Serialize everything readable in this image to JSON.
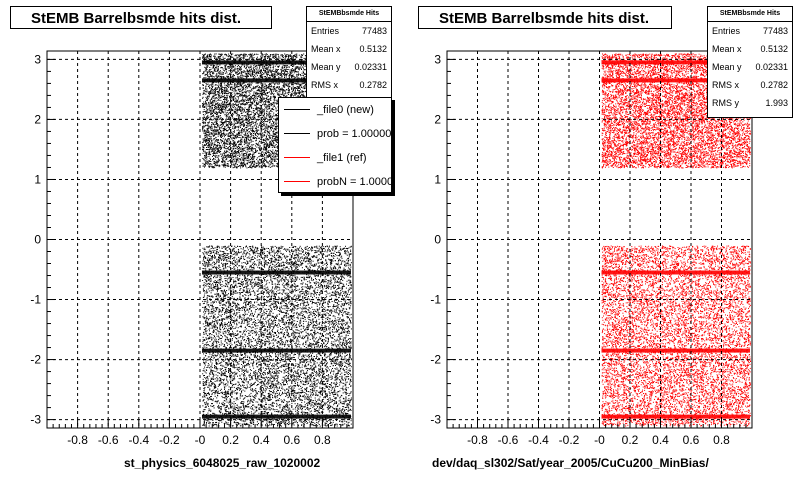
{
  "colors": {
    "ref": "#000000",
    "new": "#ff0000",
    "frame": "#000000",
    "grid": "#000000",
    "background": "#ffffff"
  },
  "panels": [
    {
      "title": "StEMB Barrelbsmde hits dist.",
      "stats": {
        "header": "StEMBbsmde Hits",
        "rows": [
          {
            "label": "Entries",
            "value": "77483"
          },
          {
            "label": "Mean x",
            "value": "0.5132"
          },
          {
            "label": "Mean y",
            "value": "0.02331"
          },
          {
            "label": "RMS x",
            "value": "0.2782"
          }
        ]
      },
      "legend": [
        {
          "label": "_file0 (new)"
        },
        {
          "label": "prob = 1.000000"
        },
        {
          "label": "_file1 (ref)"
        },
        {
          "label": "probN = 1.000000"
        }
      ],
      "xlabel": "st_physics_6048025_raw_1020002"
    },
    {
      "title": "StEMB Barrelbsmde hits dist.",
      "stats": {
        "header": "StEMBbsmde Hits",
        "rows": [
          {
            "label": "Entries",
            "value": "77483"
          },
          {
            "label": "Mean x",
            "value": "0.5132"
          },
          {
            "label": "Mean y",
            "value": "0.02331"
          },
          {
            "label": "RMS x",
            "value": "0.2782"
          },
          {
            "label": "RMS y",
            "value": "1.993"
          }
        ]
      },
      "xlabel": "dev/daq_sl302/Sat/year_2005/CuCu200_MinBias/"
    }
  ],
  "chart_data": [
    {
      "type": "scatter",
      "title": "StEMB Barrelbsmde hits dist.",
      "xlabel": "st_physics_6048025_raw_1020002",
      "ylabel": "",
      "xlim": [
        -1.0,
        1.0
      ],
      "ylim": [
        -3.14,
        3.14
      ],
      "x_ticks": [
        "-0.8",
        "-0.6",
        "-0.4",
        "-0.2",
        "-0",
        "0.2",
        "0.4",
        "0.6",
        "0.8"
      ],
      "y_ticks": [
        "-3",
        "-2",
        "-1",
        "0",
        "1",
        "2",
        "3"
      ],
      "grid": true,
      "legend_position": "top-right",
      "series": [
        {
          "name": "_file0 (new)",
          "color": "#000000",
          "regions": [
            {
              "x": [
                0.0,
                1.0
              ],
              "y": [
                1.2,
                3.1
              ]
            },
            {
              "x": [
                0.0,
                1.0
              ],
              "y": [
                -3.1,
                -0.1
              ]
            }
          ],
          "entries": 77483
        },
        {
          "name": "_file1 (ref)",
          "color": "#ff0000",
          "regions": [],
          "entries": 0
        }
      ],
      "stats": {
        "entries": 77483,
        "mean_x": 0.5132,
        "mean_y": 0.02331,
        "rms_x": 0.2782
      }
    },
    {
      "type": "scatter",
      "title": "StEMB Barrelbsmde hits dist.",
      "xlabel": "dev/daq_sl302/Sat/year_2005/CuCu200_MinBias/",
      "ylabel": "",
      "xlim": [
        -1.0,
        1.0
      ],
      "ylim": [
        -3.14,
        3.14
      ],
      "x_ticks": [
        "-0.8",
        "-0.6",
        "-0.4",
        "-0.2",
        "-0",
        "0.2",
        "0.4",
        "0.6",
        "0.8"
      ],
      "y_ticks": [
        "-3",
        "-2",
        "-1",
        "0",
        "1",
        "2",
        "3"
      ],
      "grid": true,
      "series": [
        {
          "color": "#ff0000",
          "regions": [
            {
              "x": [
                0.0,
                1.0
              ],
              "y": [
                1.2,
                3.1
              ]
            },
            {
              "x": [
                0.0,
                1.0
              ],
              "y": [
                -3.1,
                -0.1
              ]
            }
          ],
          "entries": 77483
        }
      ],
      "stats": {
        "entries": 77483,
        "mean_x": 0.5132,
        "mean_y": 0.02331,
        "rms_x": 0.2782,
        "rms_y": 1.993
      }
    }
  ]
}
